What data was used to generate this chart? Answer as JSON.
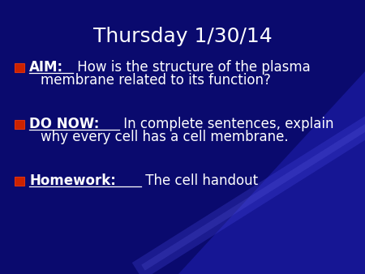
{
  "title": "Thursday 1/30/14",
  "bg_color": "#0a0a6e",
  "bg_color2": "#1a1acc",
  "title_color": "#ffffff",
  "title_fontsize": 18,
  "bullet_color": "#ffffff",
  "bullet_fontsize": 12,
  "bullet_square_color": "#cc2200",
  "figsize": [
    4.5,
    3.38
  ],
  "dpi": 100,
  "bullets": [
    {
      "label": "AIM:",
      "rest": " How is the structure of the plasma\nmembrane related to its function?"
    },
    {
      "label": "DO NOW:",
      "rest": " In complete sentences, explain\nwhy every cell has a cell membrane."
    },
    {
      "label": "Homework:",
      "rest": " The cell handout"
    }
  ]
}
